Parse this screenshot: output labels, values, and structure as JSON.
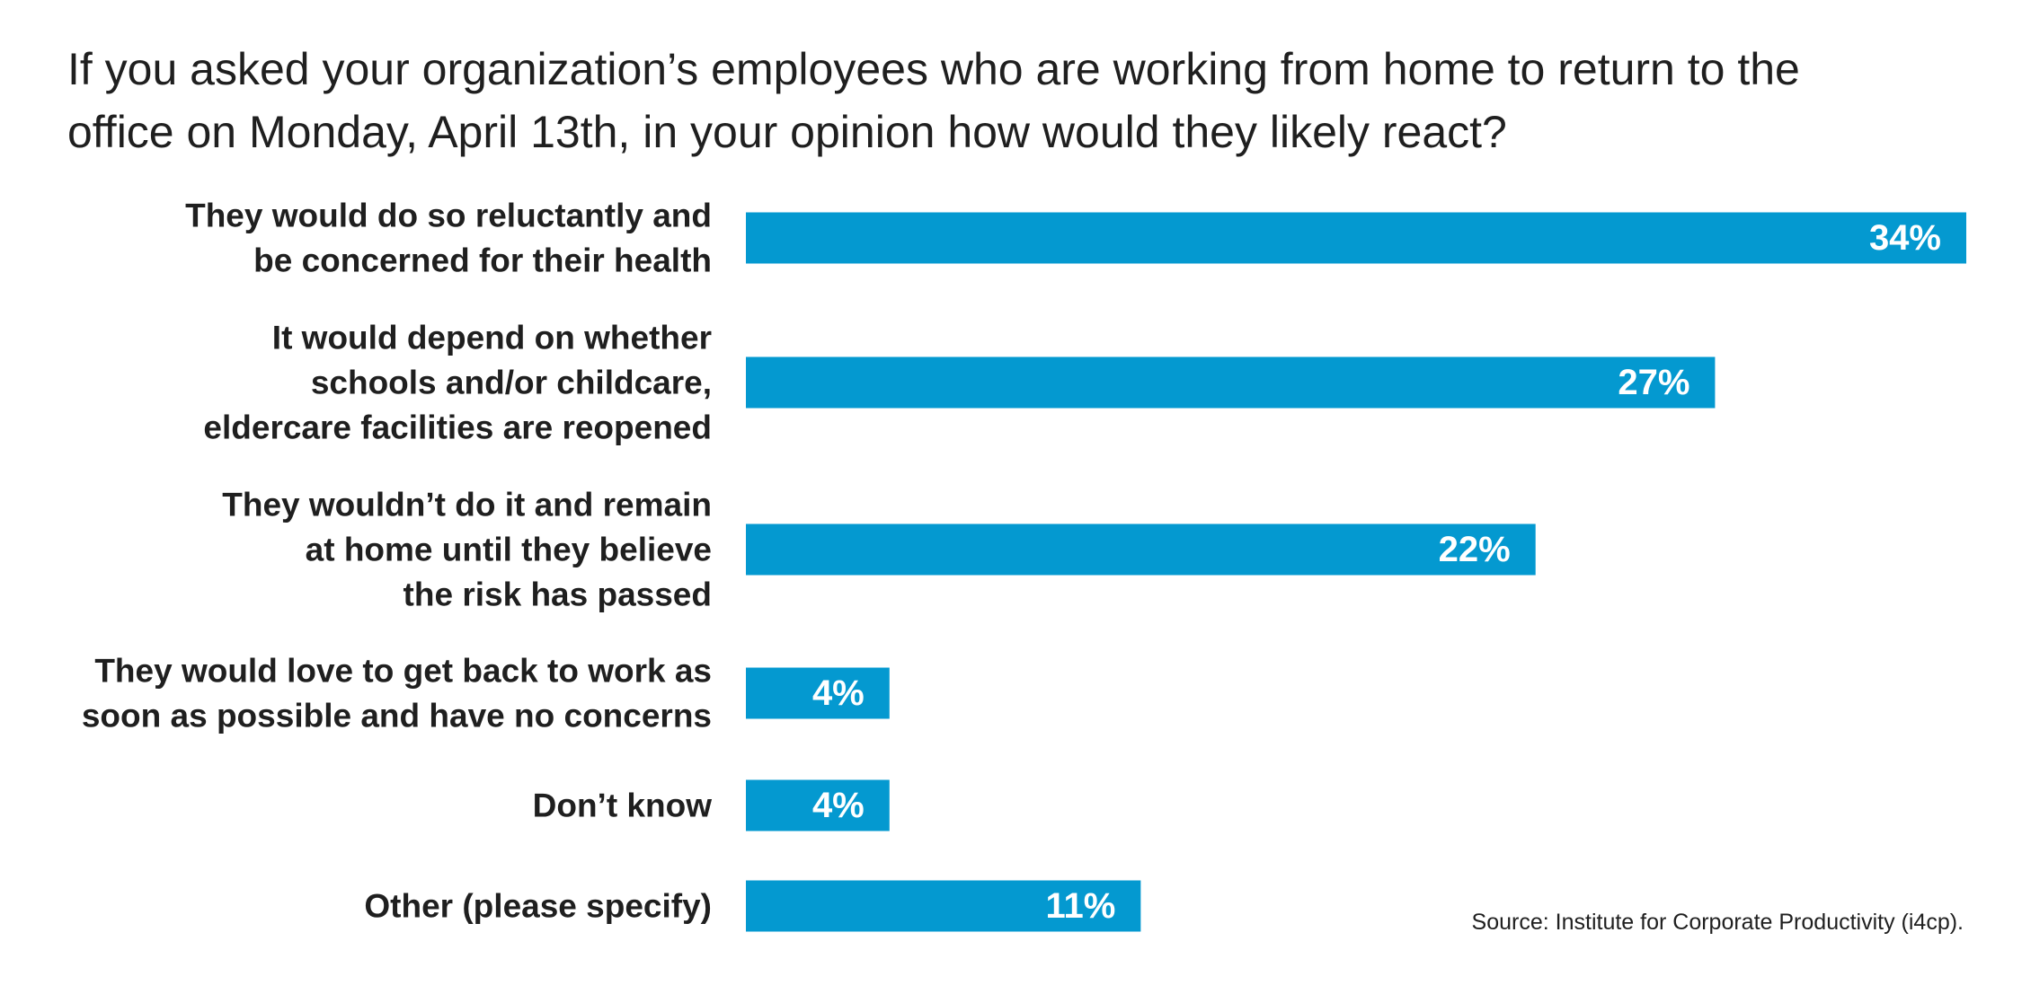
{
  "chart_data": {
    "type": "bar",
    "orientation": "horizontal",
    "title": "If you asked your organization’s employees who are working from home to return to the\noffice on Monday, April 13th, in your opinion how would they likely react?",
    "categories": [
      [
        "They would do so reluctantly and",
        "be concerned for their health"
      ],
      [
        "It would depend on whether",
        "schools and/or childcare,",
        "eldercare facilities are reopened"
      ],
      [
        "They wouldn’t do it and remain",
        "at home until they believe",
        "the risk has passed"
      ],
      [
        "They would love to get back to work as",
        "soon as possible and have no concerns"
      ],
      [
        "Don’t know"
      ],
      [
        "Other (please specify)"
      ]
    ],
    "values": [
      34,
      27,
      22,
      4,
      4,
      11
    ],
    "value_labels": [
      "34%",
      "27%",
      "22%",
      "4%",
      "4%",
      "11%"
    ],
    "unit": "%",
    "xlim": [
      0,
      34
    ],
    "bar_color": "#0499d0",
    "grid": false,
    "legend": "none",
    "source": "Source: Institute for Corporate Productivity (i4cp)."
  }
}
